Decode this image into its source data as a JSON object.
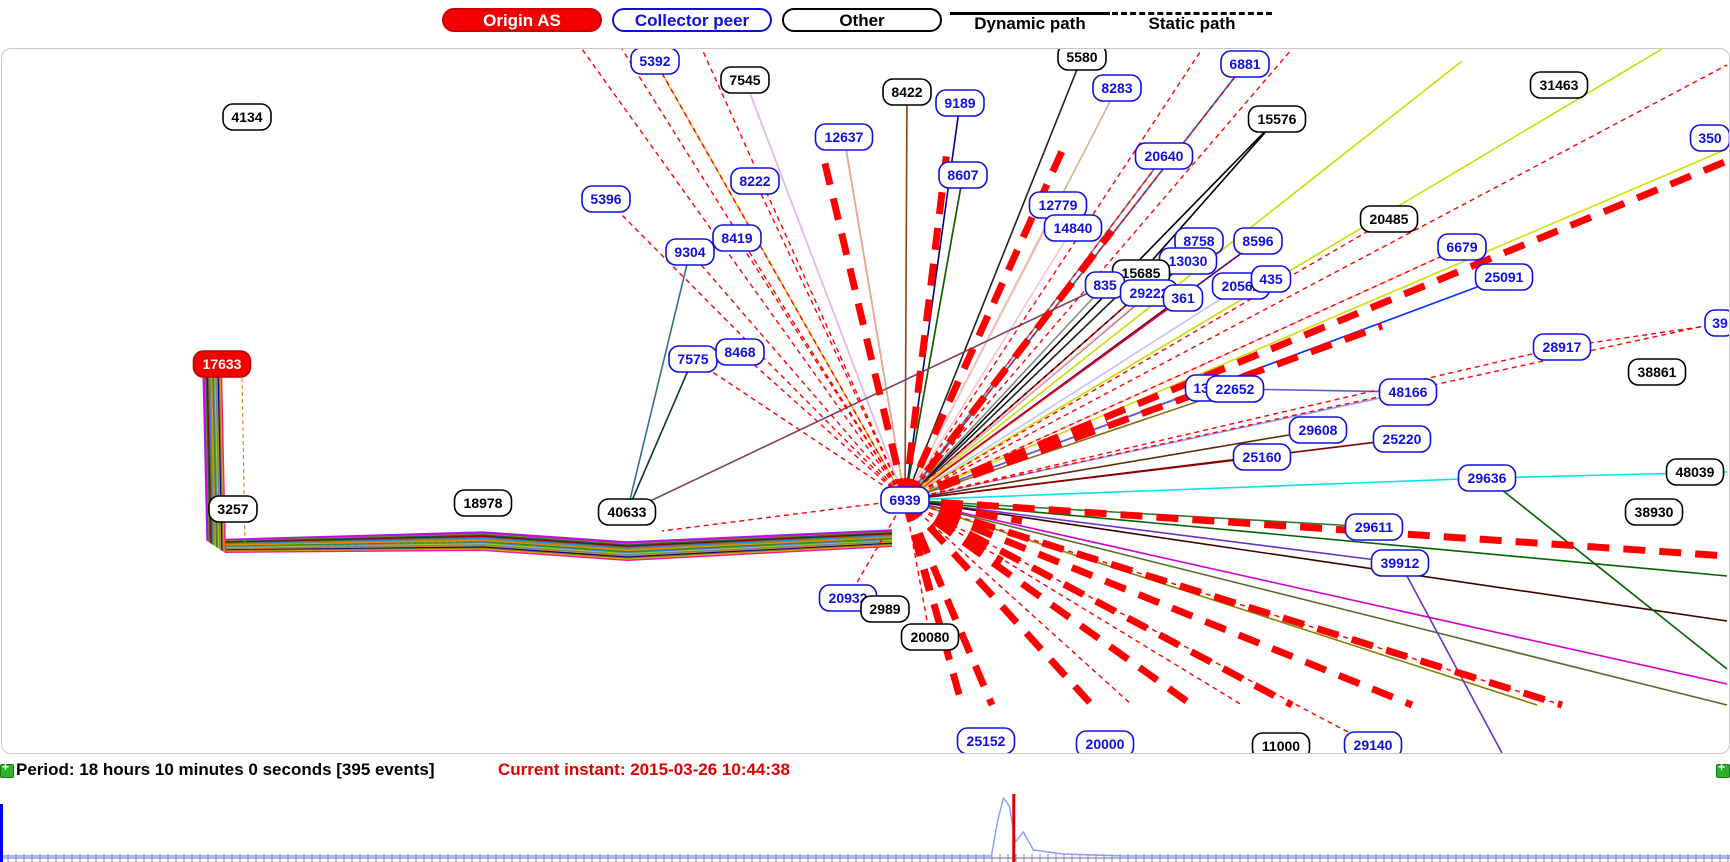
{
  "legend": {
    "origin_as": "Origin AS",
    "collector_peer": "Collector peer",
    "other": "Other",
    "dynamic_path": "Dynamic path",
    "static_path": "Static path"
  },
  "colors": {
    "origin": "#f40000",
    "peer": "#1010dd",
    "other": "#000000",
    "static_path": "#ff0000",
    "current_instant": "#e00000"
  },
  "graph": {
    "nodes": [
      {
        "id": "17633",
        "kind": "origin"
      },
      {
        "id": "3257",
        "kind": "other"
      },
      {
        "id": "18978",
        "kind": "other"
      },
      {
        "id": "40633",
        "kind": "other"
      },
      {
        "id": "6939",
        "kind": "peer"
      },
      {
        "id": "4134",
        "kind": "other"
      },
      {
        "id": "5392",
        "kind": "peer"
      },
      {
        "id": "7545",
        "kind": "other"
      },
      {
        "id": "8422",
        "kind": "other"
      },
      {
        "id": "5580",
        "kind": "other"
      },
      {
        "id": "6881",
        "kind": "peer"
      },
      {
        "id": "8283",
        "kind": "peer"
      },
      {
        "id": "9189",
        "kind": "peer"
      },
      {
        "id": "12637",
        "kind": "peer"
      },
      {
        "id": "8607",
        "kind": "peer"
      },
      {
        "id": "15576",
        "kind": "other"
      },
      {
        "id": "31463",
        "kind": "other"
      },
      {
        "id": "350",
        "kind": "peer"
      },
      {
        "id": "20640",
        "kind": "peer"
      },
      {
        "id": "8222",
        "kind": "peer"
      },
      {
        "id": "5396",
        "kind": "peer"
      },
      {
        "id": "12779",
        "kind": "peer"
      },
      {
        "id": "14840",
        "kind": "peer"
      },
      {
        "id": "8419",
        "kind": "peer"
      },
      {
        "id": "9304",
        "kind": "peer"
      },
      {
        "id": "20485",
        "kind": "other"
      },
      {
        "id": "8758",
        "kind": "peer"
      },
      {
        "id": "8596",
        "kind": "peer"
      },
      {
        "id": "6679",
        "kind": "peer"
      },
      {
        "id": "13030",
        "kind": "peer"
      },
      {
        "id": "15685",
        "kind": "other"
      },
      {
        "id": "835",
        "kind": "peer"
      },
      {
        "id": "29222",
        "kind": "peer"
      },
      {
        "id": "361",
        "kind": "peer"
      },
      {
        "id": "20562",
        "kind": "peer"
      },
      {
        "id": "435",
        "kind": "peer"
      },
      {
        "id": "25091",
        "kind": "peer"
      },
      {
        "id": "39",
        "kind": "peer"
      },
      {
        "id": "7575",
        "kind": "peer"
      },
      {
        "id": "8468",
        "kind": "peer"
      },
      {
        "id": "28917",
        "kind": "peer"
      },
      {
        "id": "38861",
        "kind": "other"
      },
      {
        "id": "132",
        "kind": "peer"
      },
      {
        "id": "22652",
        "kind": "peer"
      },
      {
        "id": "48166",
        "kind": "peer"
      },
      {
        "id": "29608",
        "kind": "peer"
      },
      {
        "id": "25220",
        "kind": "peer"
      },
      {
        "id": "25160",
        "kind": "peer"
      },
      {
        "id": "29636",
        "kind": "peer"
      },
      {
        "id": "48039",
        "kind": "other"
      },
      {
        "id": "38930",
        "kind": "other"
      },
      {
        "id": "29611",
        "kind": "peer"
      },
      {
        "id": "39912",
        "kind": "peer"
      },
      {
        "id": "20932",
        "kind": "peer"
      },
      {
        "id": "2989",
        "kind": "other"
      },
      {
        "id": "20080",
        "kind": "other"
      },
      {
        "id": "25152",
        "kind": "peer"
      },
      {
        "id": "20000",
        "kind": "peer"
      },
      {
        "id": "11000",
        "kind": "other"
      },
      {
        "id": "29140",
        "kind": "peer"
      }
    ]
  },
  "status": {
    "period": "Period: 18 hours 10 minutes 0 seconds [395 events]",
    "current_instant": "Current instant: 2015-03-26 10:44:38"
  },
  "timeline": {
    "current_position": 0.586,
    "spike_position": 0.58
  }
}
